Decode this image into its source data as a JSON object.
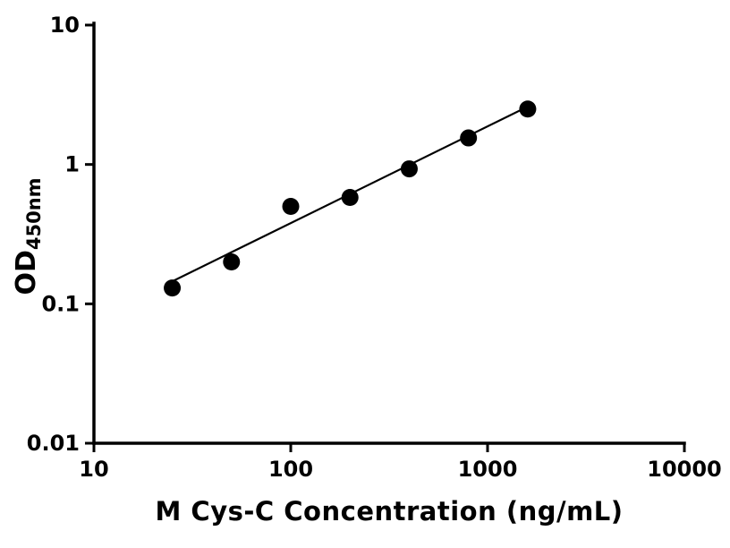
{
  "chart_data": {
    "type": "scatter",
    "title": "",
    "xlabel": "M Cys-C Concentration (ng/mL)",
    "ylabel_base": "OD",
    "ylabel_sub": "450nm",
    "x_scale": "log",
    "y_scale": "log",
    "xlim": [
      10,
      10000
    ],
    "ylim": [
      0.01,
      10
    ],
    "x_ticks": [
      10,
      100,
      1000,
      10000
    ],
    "x_tick_labels": [
      "10",
      "100",
      "1000",
      "10000"
    ],
    "y_ticks": [
      0.01,
      0.1,
      1,
      10
    ],
    "y_tick_labels": [
      "0.01",
      "0.1",
      "1",
      "10"
    ],
    "grid": false,
    "legend": "none",
    "series": [
      {
        "name": "standard-points",
        "kind": "scatter",
        "marker": "circle",
        "color": "#000000",
        "x": [
          25,
          50,
          100,
          200,
          400,
          800,
          1600
        ],
        "y": [
          0.13,
          0.2,
          0.5,
          0.58,
          0.93,
          1.55,
          2.5
        ]
      },
      {
        "name": "fit-line",
        "kind": "line",
        "color": "#000000",
        "x": [
          25,
          1600
        ],
        "y": [
          0.145,
          2.6
        ]
      }
    ]
  },
  "colors": {
    "axis": "#000000",
    "marker": "#000000",
    "background": "#ffffff"
  }
}
